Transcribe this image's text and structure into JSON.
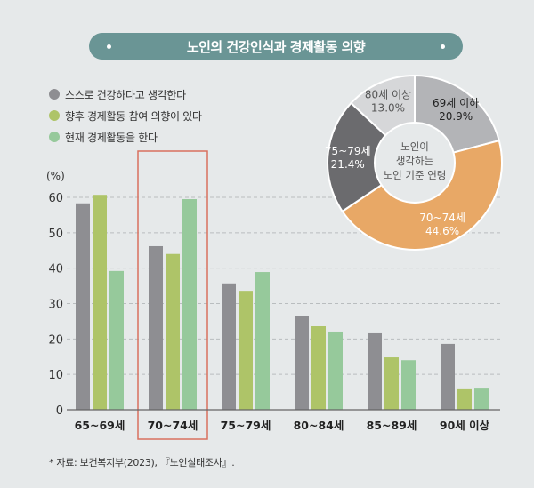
{
  "title": "노인의 건강인식과 경제활동 의향",
  "legend": [
    {
      "label": "스스로 건강하다고 생각한다",
      "color": "#8e8e92"
    },
    {
      "label": "향후 경제활동 참여 의향이 있다",
      "color": "#aec468"
    },
    {
      "label": "현재 경제활동을 한다",
      "color": "#96c99b"
    }
  ],
  "source": "* 자료: 보건복지부(2023), 『노인실태조사』.",
  "highlight_category": "70~74세",
  "highlight_color": "#d9715e",
  "chart_data": [
    {
      "type": "bar",
      "title": "노인의 건강인식과 경제활동 의향",
      "ylabel": "(%)",
      "xlabel": "",
      "ylim": [
        0,
        60
      ],
      "yticks": [
        0,
        10,
        20,
        30,
        40,
        50,
        60
      ],
      "grid": true,
      "legend_position": "top-left",
      "categories": [
        "65~69세",
        "70~74세",
        "75~79세",
        "80~84세",
        "85~89세",
        "90세 이상"
      ],
      "series": [
        {
          "name": "스스로 건강하다고 생각한다",
          "color": "#8e8e92",
          "values": [
            58.3,
            46.2,
            35.7,
            26.4,
            21.6,
            18.6
          ]
        },
        {
          "name": "향후 경제활동 참여 의향이 있다",
          "color": "#aec468",
          "values": [
            60.7,
            44.0,
            33.6,
            23.6,
            14.8,
            5.8
          ]
        },
        {
          "name": "현재 경제활동을 한다",
          "color": "#96c99b",
          "values": [
            39.2,
            59.5,
            38.9,
            22.1,
            14.0,
            6.0
          ]
        }
      ]
    },
    {
      "type": "pie",
      "title": "노인이 생각하는 노인 기준 연령",
      "center_label": [
        "노인이",
        "생각하는",
        "노인 기준 연령"
      ],
      "slices": [
        {
          "label": "69세 이하",
          "value": 20.9,
          "display": "20.9%",
          "color": "#b3b4b7",
          "text_color": "#222222"
        },
        {
          "label": "70~74세",
          "value": 44.6,
          "display": "44.6%",
          "color": "#e8a866",
          "text_color": "#ffffff"
        },
        {
          "label": "75~79세",
          "value": 21.4,
          "display": "21.4%",
          "color": "#6b6b6e",
          "text_color": "#ffffff"
        },
        {
          "label": "80세 이상",
          "value": 13.0,
          "display": "13.0%",
          "color": "#d6d7d9",
          "text_color": "#555555"
        }
      ]
    }
  ]
}
